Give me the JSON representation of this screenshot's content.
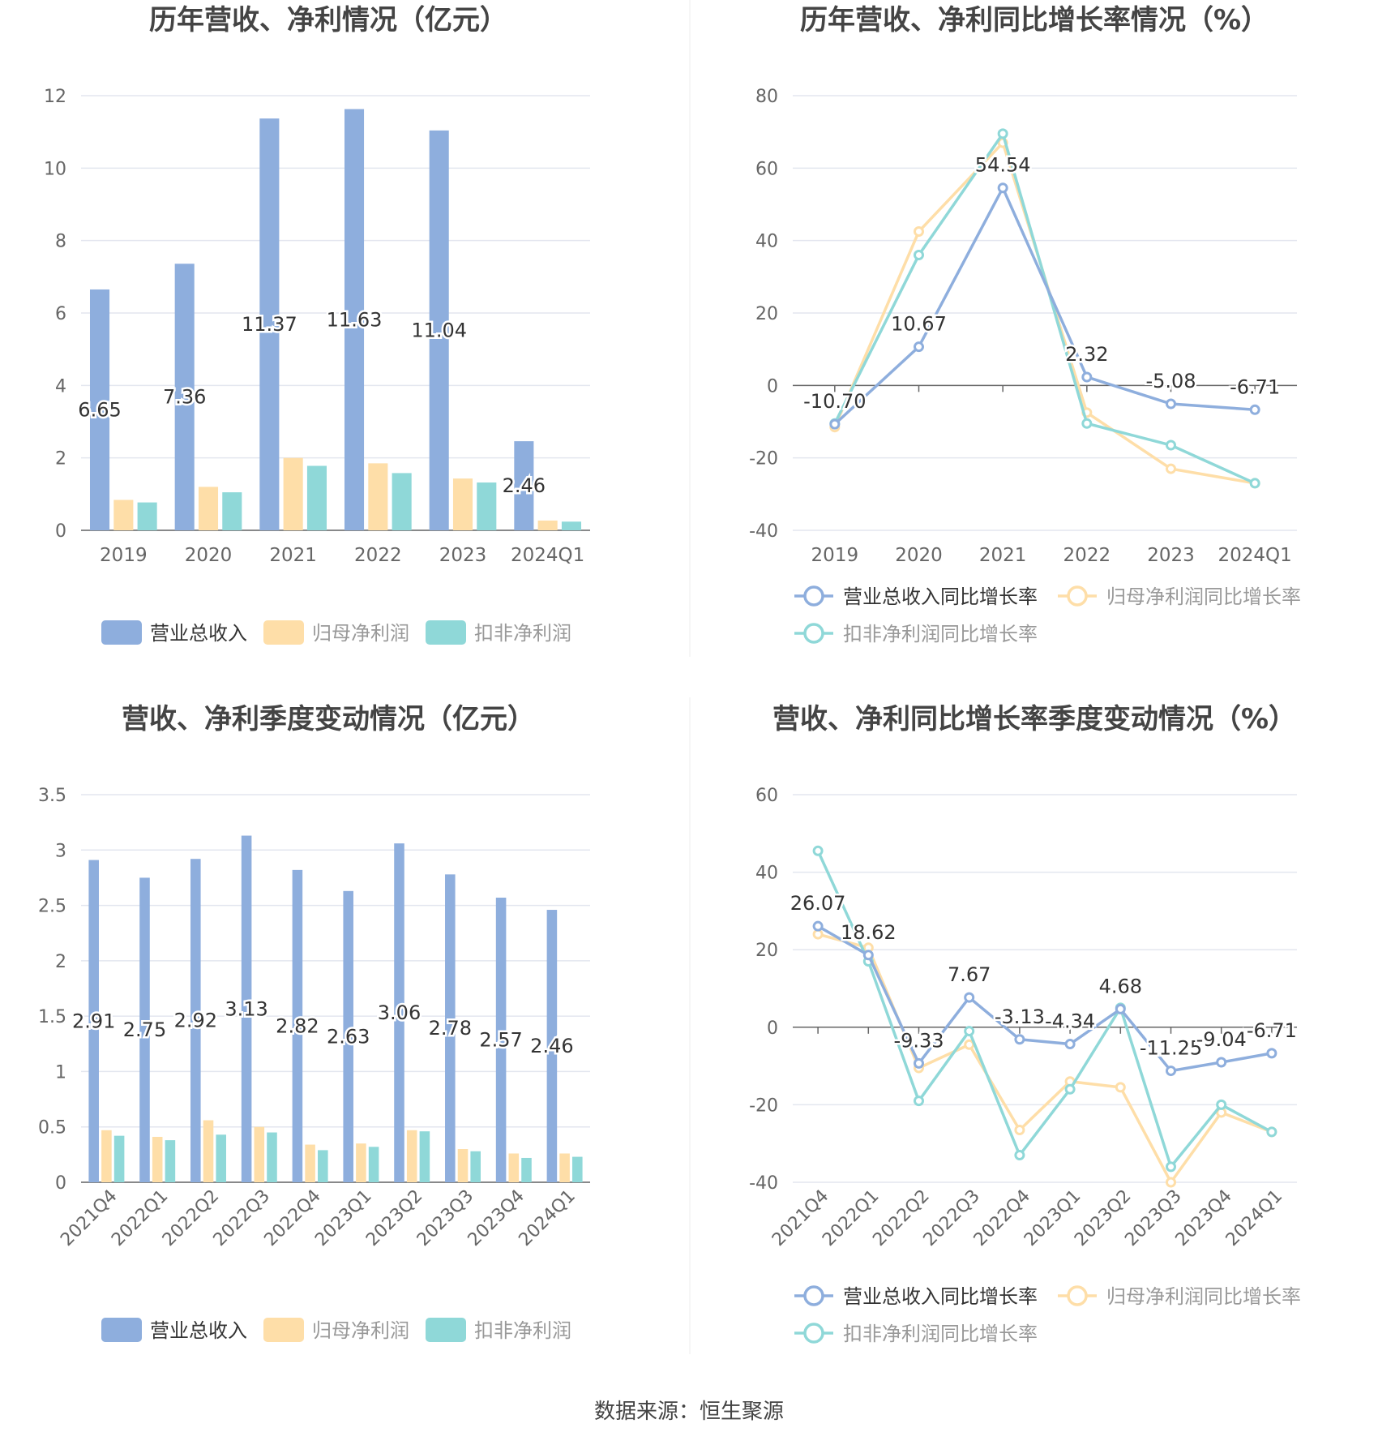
{
  "source_text": "数据来源：恒生聚源",
  "colors": {
    "revenue": "#8eaedd",
    "net_profit": "#fedea8",
    "deducted_profit": "#8fd8d8"
  },
  "chart_data": [
    {
      "type": "bar",
      "title": "历年营收、净利情况（亿元）",
      "categories": [
        "2019",
        "2020",
        "2021",
        "2022",
        "2023",
        "2024Q1"
      ],
      "ylim": [
        0,
        12
      ],
      "yticks": [
        "0",
        "2",
        "4",
        "6",
        "8",
        "10",
        "12"
      ],
      "grid": true,
      "legend_position": "bottom",
      "series": [
        {
          "name": "营业总收入",
          "values": [
            6.65,
            7.36,
            11.37,
            11.63,
            11.04,
            2.46
          ],
          "labels": [
            "6.65",
            "7.36",
            "11.37",
            "11.63",
            "11.04",
            "2.46"
          ]
        },
        {
          "name": "归母净利润",
          "values": [
            0.84,
            1.2,
            2.0,
            1.85,
            1.43,
            0.27
          ]
        },
        {
          "name": "扣非净利润",
          "values": [
            0.77,
            1.05,
            1.78,
            1.58,
            1.32,
            0.24
          ]
        }
      ]
    },
    {
      "type": "line",
      "title": "历年营收、净利同比增长率情况（%）",
      "categories": [
        "2019",
        "2020",
        "2021",
        "2022",
        "2023",
        "2024Q1"
      ],
      "ylim": [
        -40,
        80
      ],
      "yticks": [
        "-40",
        "-20",
        "0",
        "20",
        "40",
        "60",
        "80"
      ],
      "grid": true,
      "legend_position": "bottom",
      "series": [
        {
          "name": "营业总收入同比增长率",
          "values": [
            -10.7,
            10.67,
            54.54,
            2.32,
            -5.08,
            -6.71
          ],
          "labels": [
            "-10.70",
            "10.67",
            "54.54",
            "2.32",
            "-5.08",
            "-6.71"
          ]
        },
        {
          "name": "归母净利润同比增长率",
          "values": [
            -11.5,
            42.5,
            67.0,
            -7.5,
            -23.0,
            -27.0
          ]
        },
        {
          "name": "扣非净利润同比增长率",
          "values": [
            -10.5,
            36.0,
            69.5,
            -10.5,
            -16.5,
            -27.0
          ]
        }
      ]
    },
    {
      "type": "bar",
      "title": "营收、净利季度变动情况（亿元）",
      "categories": [
        "2021Q4",
        "2022Q1",
        "2022Q2",
        "2022Q3",
        "2022Q4",
        "2023Q1",
        "2023Q2",
        "2023Q3",
        "2023Q4",
        "2024Q1"
      ],
      "ylim": [
        0,
        3.5
      ],
      "yticks": [
        "0",
        "0.5",
        "1",
        "1.5",
        "2",
        "2.5",
        "3",
        "3.5"
      ],
      "grid": true,
      "legend_position": "bottom",
      "series": [
        {
          "name": "营业总收入",
          "values": [
            2.91,
            2.75,
            2.92,
            3.13,
            2.82,
            2.63,
            3.06,
            2.78,
            2.57,
            2.46
          ],
          "labels": [
            "2.91",
            "2.75",
            "2.92",
            "3.13",
            "2.82",
            "2.63",
            "3.06",
            "2.78",
            "2.57",
            "2.46"
          ]
        },
        {
          "name": "归母净利润",
          "values": [
            0.47,
            0.41,
            0.56,
            0.5,
            0.34,
            0.35,
            0.47,
            0.3,
            0.26,
            0.26
          ]
        },
        {
          "name": "扣非净利润",
          "values": [
            0.42,
            0.38,
            0.43,
            0.45,
            0.29,
            0.32,
            0.46,
            0.28,
            0.22,
            0.23
          ]
        }
      ]
    },
    {
      "type": "line",
      "title": "营收、净利同比增长率季度变动情况（%）",
      "categories": [
        "2021Q4",
        "2022Q1",
        "2022Q2",
        "2022Q3",
        "2022Q4",
        "2023Q1",
        "2023Q2",
        "2023Q3",
        "2023Q4",
        "2024Q1"
      ],
      "ylim": [
        -40,
        60
      ],
      "yticks": [
        "-40",
        "-20",
        "0",
        "20",
        "40",
        "60"
      ],
      "grid": true,
      "legend_position": "bottom",
      "series": [
        {
          "name": "营业总收入同比增长率",
          "values": [
            26.07,
            18.62,
            -9.33,
            7.67,
            -3.13,
            -4.34,
            4.68,
            -11.25,
            -9.04,
            -6.71
          ],
          "labels": [
            "26.07",
            "18.62",
            "-9.33",
            "7.67",
            "-3.13",
            "-4.34",
            "4.68",
            "-11.25",
            "-9.04",
            "-6.71"
          ]
        },
        {
          "name": "归母净利润同比增长率",
          "values": [
            24.0,
            20.5,
            -10.5,
            -4.5,
            -26.5,
            -14.0,
            -15.5,
            -40.0,
            -22.0,
            -27.0
          ]
        },
        {
          "name": "扣非净利润同比增长率",
          "values": [
            45.5,
            17.0,
            -19.0,
            -1.0,
            -33.0,
            -16.0,
            5.0,
            -36.0,
            -20.0,
            -27.0
          ]
        }
      ]
    }
  ]
}
